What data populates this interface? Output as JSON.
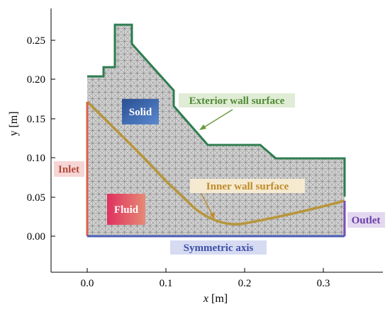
{
  "axes": {
    "xlabel_var": "x",
    "xlabel_unit": " [m]",
    "ylabel": "y [m]",
    "xticks": [
      "0.0",
      "0.1",
      "0.2",
      "0.3"
    ],
    "yticks": [
      "0.00",
      "0.05",
      "0.10",
      "0.15",
      "0.20",
      "0.25"
    ]
  },
  "labels": {
    "solid": "Solid",
    "fluid": "Fluid",
    "inlet": "Inlet",
    "outlet": "Outlet",
    "symmetric_axis": "Symmetric axis",
    "exterior_wall": "Exterior wall surface",
    "inner_wall": "Inner wall surface"
  },
  "colors": {
    "mesh_background": "#c9c9c9",
    "exterior_wall": "#2e7d4f",
    "inner_wall": "#b8963c",
    "inlet_line": "#d9604a",
    "outlet_line": "#7a4fb5",
    "symmetric_line": "#4a5fb5",
    "solid_box": "#2f5fa8",
    "fluid_box": "#d8406a",
    "inlet_tag_bg": "#f6d5d5",
    "outlet_tag_bg": "#e3d8f0",
    "symmetric_tag_bg": "#d6dbf2",
    "exterior_tag_bg": "#e0ecd5",
    "inner_tag_bg": "#f5ead0"
  }
}
